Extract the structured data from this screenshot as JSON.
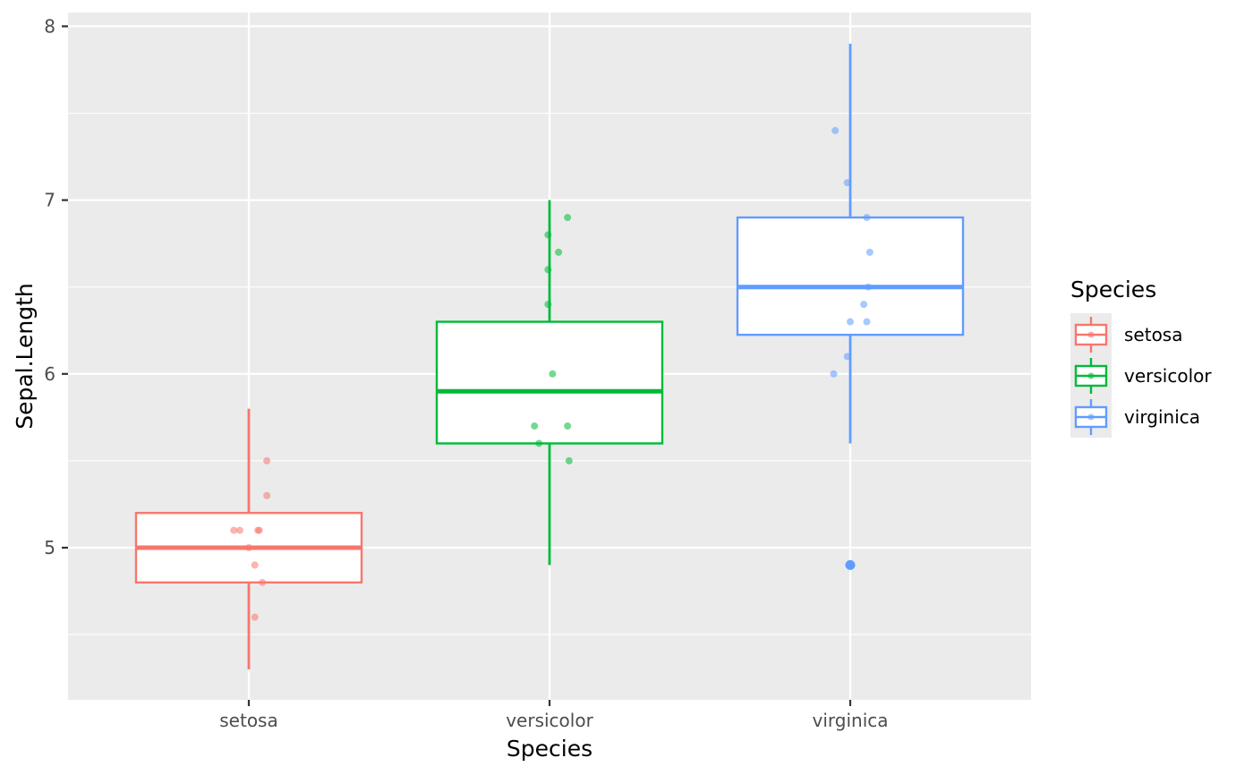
{
  "chart_data": {
    "type": "boxplot",
    "xlabel": "Species",
    "ylabel": "Sepal.Length",
    "ylim": [
      4.2,
      8.1
    ],
    "yticks": [
      5,
      6,
      7,
      8
    ],
    "grid": true,
    "legend": {
      "title": "Species",
      "position": "right"
    },
    "categories": [
      "setosa",
      "versicolor",
      "virginica"
    ],
    "series": [
      {
        "name": "setosa",
        "color": "#F8766D",
        "box": {
          "lower_whisker": 4.3,
          "q1": 4.8,
          "median": 5.0,
          "q3": 5.2,
          "upper_whisker": 5.8,
          "outliers": []
        },
        "points": [
          {
            "jitter": 0.06,
            "y": 5.5
          },
          {
            "jitter": 0.06,
            "y": 5.3
          },
          {
            "jitter": -0.05,
            "y": 5.1
          },
          {
            "jitter": -0.03,
            "y": 5.1
          },
          {
            "jitter": 0.03,
            "y": 5.1
          },
          {
            "jitter": 0.035,
            "y": 5.1
          },
          {
            "jitter": 0.0,
            "y": 5.0
          },
          {
            "jitter": 0.02,
            "y": 4.9
          },
          {
            "jitter": 0.045,
            "y": 4.8
          },
          {
            "jitter": 0.02,
            "y": 4.6
          }
        ]
      },
      {
        "name": "versicolor",
        "color": "#00BA38",
        "box": {
          "lower_whisker": 4.9,
          "q1": 5.6,
          "median": 5.9,
          "q3": 6.3,
          "upper_whisker": 7.0,
          "outliers": []
        },
        "points": [
          {
            "jitter": 0.06,
            "y": 6.9
          },
          {
            "jitter": -0.005,
            "y": 6.8
          },
          {
            "jitter": 0.03,
            "y": 6.7
          },
          {
            "jitter": -0.005,
            "y": 6.6
          },
          {
            "jitter": -0.005,
            "y": 6.4
          },
          {
            "jitter": 0.01,
            "y": 6.0
          },
          {
            "jitter": -0.05,
            "y": 5.7
          },
          {
            "jitter": 0.06,
            "y": 5.7
          },
          {
            "jitter": -0.035,
            "y": 5.6
          },
          {
            "jitter": 0.065,
            "y": 5.5
          }
        ]
      },
      {
        "name": "virginica",
        "color": "#619CFF",
        "box": {
          "lower_whisker": 5.6,
          "q1": 6.225,
          "median": 6.5,
          "q3": 6.9,
          "upper_whisker": 7.9,
          "outliers": [
            4.9
          ]
        },
        "points": [
          {
            "jitter": -0.05,
            "y": 7.4
          },
          {
            "jitter": -0.01,
            "y": 7.1
          },
          {
            "jitter": 0.055,
            "y": 6.9
          },
          {
            "jitter": 0.065,
            "y": 6.7
          },
          {
            "jitter": 0.06,
            "y": 6.5
          },
          {
            "jitter": 0.045,
            "y": 6.4
          },
          {
            "jitter": 0.0,
            "y": 6.3
          },
          {
            "jitter": 0.055,
            "y": 6.3
          },
          {
            "jitter": -0.01,
            "y": 6.1
          },
          {
            "jitter": -0.055,
            "y": 6.0
          },
          {
            "jitter": 0.0,
            "y": 4.9
          }
        ]
      }
    ]
  }
}
